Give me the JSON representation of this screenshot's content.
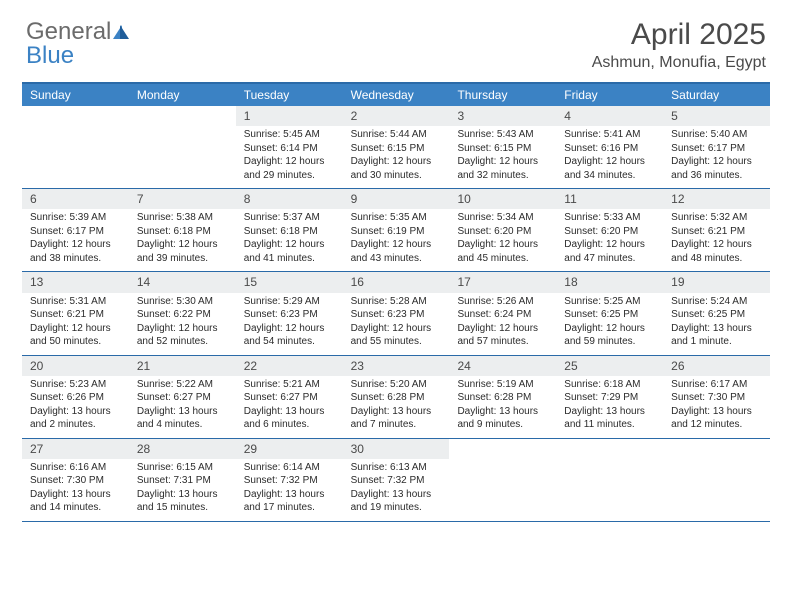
{
  "colors": {
    "header_blue": "#3b82c4",
    "border_blue": "#2a6aa8",
    "daynum_bg": "#eceeef",
    "text_gray": "#4a4a4a",
    "body_text": "#2b2b2b",
    "logo_gray": "#6b6b6b"
  },
  "logo": {
    "part1": "General",
    "part2": "Blue"
  },
  "title": "April 2025",
  "location": "Ashmun, Monufia, Egypt",
  "day_names": [
    "Sunday",
    "Monday",
    "Tuesday",
    "Wednesday",
    "Thursday",
    "Friday",
    "Saturday"
  ],
  "weeks": [
    [
      null,
      null,
      {
        "n": "1",
        "sr": "Sunrise: 5:45 AM",
        "ss": "Sunset: 6:14 PM",
        "d1": "Daylight: 12 hours",
        "d2": "and 29 minutes."
      },
      {
        "n": "2",
        "sr": "Sunrise: 5:44 AM",
        "ss": "Sunset: 6:15 PM",
        "d1": "Daylight: 12 hours",
        "d2": "and 30 minutes."
      },
      {
        "n": "3",
        "sr": "Sunrise: 5:43 AM",
        "ss": "Sunset: 6:15 PM",
        "d1": "Daylight: 12 hours",
        "d2": "and 32 minutes."
      },
      {
        "n": "4",
        "sr": "Sunrise: 5:41 AM",
        "ss": "Sunset: 6:16 PM",
        "d1": "Daylight: 12 hours",
        "d2": "and 34 minutes."
      },
      {
        "n": "5",
        "sr": "Sunrise: 5:40 AM",
        "ss": "Sunset: 6:17 PM",
        "d1": "Daylight: 12 hours",
        "d2": "and 36 minutes."
      }
    ],
    [
      {
        "n": "6",
        "sr": "Sunrise: 5:39 AM",
        "ss": "Sunset: 6:17 PM",
        "d1": "Daylight: 12 hours",
        "d2": "and 38 minutes."
      },
      {
        "n": "7",
        "sr": "Sunrise: 5:38 AM",
        "ss": "Sunset: 6:18 PM",
        "d1": "Daylight: 12 hours",
        "d2": "and 39 minutes."
      },
      {
        "n": "8",
        "sr": "Sunrise: 5:37 AM",
        "ss": "Sunset: 6:18 PM",
        "d1": "Daylight: 12 hours",
        "d2": "and 41 minutes."
      },
      {
        "n": "9",
        "sr": "Sunrise: 5:35 AM",
        "ss": "Sunset: 6:19 PM",
        "d1": "Daylight: 12 hours",
        "d2": "and 43 minutes."
      },
      {
        "n": "10",
        "sr": "Sunrise: 5:34 AM",
        "ss": "Sunset: 6:20 PM",
        "d1": "Daylight: 12 hours",
        "d2": "and 45 minutes."
      },
      {
        "n": "11",
        "sr": "Sunrise: 5:33 AM",
        "ss": "Sunset: 6:20 PM",
        "d1": "Daylight: 12 hours",
        "d2": "and 47 minutes."
      },
      {
        "n": "12",
        "sr": "Sunrise: 5:32 AM",
        "ss": "Sunset: 6:21 PM",
        "d1": "Daylight: 12 hours",
        "d2": "and 48 minutes."
      }
    ],
    [
      {
        "n": "13",
        "sr": "Sunrise: 5:31 AM",
        "ss": "Sunset: 6:21 PM",
        "d1": "Daylight: 12 hours",
        "d2": "and 50 minutes."
      },
      {
        "n": "14",
        "sr": "Sunrise: 5:30 AM",
        "ss": "Sunset: 6:22 PM",
        "d1": "Daylight: 12 hours",
        "d2": "and 52 minutes."
      },
      {
        "n": "15",
        "sr": "Sunrise: 5:29 AM",
        "ss": "Sunset: 6:23 PM",
        "d1": "Daylight: 12 hours",
        "d2": "and 54 minutes."
      },
      {
        "n": "16",
        "sr": "Sunrise: 5:28 AM",
        "ss": "Sunset: 6:23 PM",
        "d1": "Daylight: 12 hours",
        "d2": "and 55 minutes."
      },
      {
        "n": "17",
        "sr": "Sunrise: 5:26 AM",
        "ss": "Sunset: 6:24 PM",
        "d1": "Daylight: 12 hours",
        "d2": "and 57 minutes."
      },
      {
        "n": "18",
        "sr": "Sunrise: 5:25 AM",
        "ss": "Sunset: 6:25 PM",
        "d1": "Daylight: 12 hours",
        "d2": "and 59 minutes."
      },
      {
        "n": "19",
        "sr": "Sunrise: 5:24 AM",
        "ss": "Sunset: 6:25 PM",
        "d1": "Daylight: 13 hours",
        "d2": "and 1 minute."
      }
    ],
    [
      {
        "n": "20",
        "sr": "Sunrise: 5:23 AM",
        "ss": "Sunset: 6:26 PM",
        "d1": "Daylight: 13 hours",
        "d2": "and 2 minutes."
      },
      {
        "n": "21",
        "sr": "Sunrise: 5:22 AM",
        "ss": "Sunset: 6:27 PM",
        "d1": "Daylight: 13 hours",
        "d2": "and 4 minutes."
      },
      {
        "n": "22",
        "sr": "Sunrise: 5:21 AM",
        "ss": "Sunset: 6:27 PM",
        "d1": "Daylight: 13 hours",
        "d2": "and 6 minutes."
      },
      {
        "n": "23",
        "sr": "Sunrise: 5:20 AM",
        "ss": "Sunset: 6:28 PM",
        "d1": "Daylight: 13 hours",
        "d2": "and 7 minutes."
      },
      {
        "n": "24",
        "sr": "Sunrise: 5:19 AM",
        "ss": "Sunset: 6:28 PM",
        "d1": "Daylight: 13 hours",
        "d2": "and 9 minutes."
      },
      {
        "n": "25",
        "sr": "Sunrise: 6:18 AM",
        "ss": "Sunset: 7:29 PM",
        "d1": "Daylight: 13 hours",
        "d2": "and 11 minutes."
      },
      {
        "n": "26",
        "sr": "Sunrise: 6:17 AM",
        "ss": "Sunset: 7:30 PM",
        "d1": "Daylight: 13 hours",
        "d2": "and 12 minutes."
      }
    ],
    [
      {
        "n": "27",
        "sr": "Sunrise: 6:16 AM",
        "ss": "Sunset: 7:30 PM",
        "d1": "Daylight: 13 hours",
        "d2": "and 14 minutes."
      },
      {
        "n": "28",
        "sr": "Sunrise: 6:15 AM",
        "ss": "Sunset: 7:31 PM",
        "d1": "Daylight: 13 hours",
        "d2": "and 15 minutes."
      },
      {
        "n": "29",
        "sr": "Sunrise: 6:14 AM",
        "ss": "Sunset: 7:32 PM",
        "d1": "Daylight: 13 hours",
        "d2": "and 17 minutes."
      },
      {
        "n": "30",
        "sr": "Sunrise: 6:13 AM",
        "ss": "Sunset: 7:32 PM",
        "d1": "Daylight: 13 hours",
        "d2": "and 19 minutes."
      },
      null,
      null,
      null
    ]
  ]
}
